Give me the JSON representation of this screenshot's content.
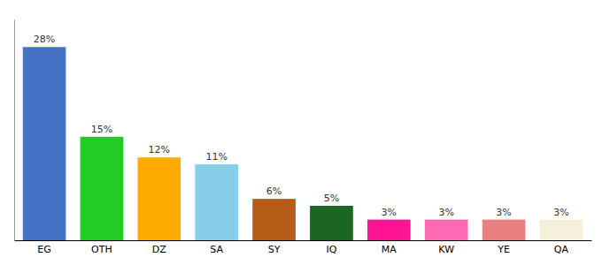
{
  "chart_data": {
    "type": "bar",
    "categories": [
      "EG",
      "OTH",
      "DZ",
      "SA",
      "SY",
      "IQ",
      "MA",
      "KW",
      "YE",
      "QA"
    ],
    "values": [
      28,
      15,
      12,
      11,
      6,
      5,
      3,
      3,
      3,
      3
    ],
    "value_labels": [
      "28%",
      "15%",
      "12%",
      "11%",
      "6%",
      "5%",
      "3%",
      "3%",
      "3%",
      "3%"
    ],
    "colors": [
      "#4472c4",
      "#22cc22",
      "#ffaa00",
      "#87ceeb",
      "#b85c1a",
      "#1a6622",
      "#ff1493",
      "#ff69b4",
      "#e88080",
      "#f5f0dc"
    ],
    "ylim": [
      0,
      32
    ],
    "data_labels": true,
    "tick_labels": "x"
  }
}
